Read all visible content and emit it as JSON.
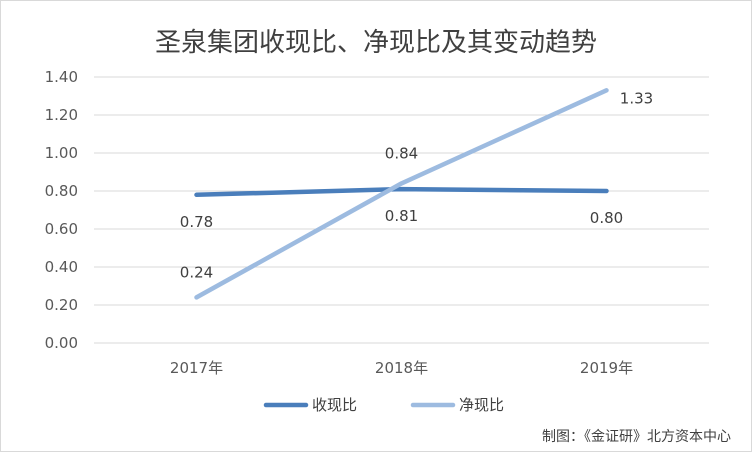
{
  "chart_data": {
    "type": "line",
    "title": "圣泉集团收现比、净现比及其变动趋势",
    "categories": [
      "2017年",
      "2018年",
      "2019年"
    ],
    "series": [
      {
        "name": "收现比",
        "values": [
          0.78,
          0.81,
          0.8
        ],
        "labels": [
          "0.78",
          "0.81",
          "0.80"
        ],
        "color": "#4a7ebb"
      },
      {
        "name": "净现比",
        "values": [
          0.24,
          0.84,
          1.33
        ],
        "labels": [
          "0.24",
          "0.84",
          "1.33"
        ],
        "color": "#9dbbe0"
      }
    ],
    "y_ticks": [
      "0.00",
      "0.20",
      "0.40",
      "0.60",
      "0.80",
      "1.00",
      "1.20",
      "1.40"
    ],
    "ylim": [
      0,
      1.4
    ],
    "grid": true,
    "legend_position": "bottom"
  },
  "credit": "制图：《金证研》北方资本中心"
}
